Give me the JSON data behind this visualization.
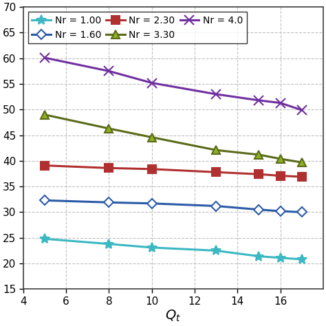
{
  "series": [
    {
      "label": "Nr = 1.00",
      "color": "#3BB8C3",
      "marker": "*",
      "markersize": 10,
      "markerfacecolor": "#3BB8C3",
      "markeredgecolor": "#3BB8C3",
      "x": [
        5,
        8,
        10,
        13,
        15,
        16,
        17
      ],
      "y": [
        24.8,
        23.8,
        23.1,
        22.5,
        21.4,
        21.1,
        20.8
      ]
    },
    {
      "label": "Nr = 1.60",
      "color": "#2B5BA8",
      "marker": "D",
      "markersize": 7,
      "markerfacecolor": "white",
      "markeredgecolor": "#2B5BA8",
      "x": [
        5,
        8,
        10,
        13,
        15,
        16,
        17
      ],
      "y": [
        32.3,
        31.9,
        31.7,
        31.2,
        30.5,
        30.2,
        30.0
      ]
    },
    {
      "label": "Nr = 2.30",
      "color": "#B03030",
      "marker": "s",
      "markersize": 8,
      "markerfacecolor": "#B03030",
      "markeredgecolor": "#B03030",
      "x": [
        5,
        8,
        10,
        13,
        15,
        16,
        17
      ],
      "y": [
        39.1,
        38.6,
        38.4,
        37.8,
        37.4,
        37.1,
        36.9
      ]
    },
    {
      "label": "Nr = 3.30",
      "color": "#5A6B1A",
      "marker": "^",
      "markersize": 9,
      "markerfacecolor": "#8DB020",
      "markeredgecolor": "#5A6B1A",
      "x": [
        5,
        8,
        10,
        13,
        15,
        16,
        17
      ],
      "y": [
        49.0,
        46.3,
        44.6,
        42.1,
        41.2,
        40.4,
        39.7
      ]
    },
    {
      "label": "Nr = 4.0",
      "color": "#7030A0",
      "marker": "x",
      "markersize": 10,
      "markerfacecolor": "#7030A0",
      "markeredgecolor": "#7030A0",
      "x": [
        5,
        8,
        10,
        13,
        15,
        16,
        17
      ],
      "y": [
        60.1,
        57.5,
        55.2,
        53.0,
        51.8,
        51.3,
        49.9
      ]
    }
  ],
  "xlim": [
    4,
    18
  ],
  "ylim": [
    15,
    70
  ],
  "xticks": [
    4,
    6,
    8,
    10,
    12,
    14,
    16
  ],
  "yticks": [
    15,
    20,
    25,
    30,
    35,
    40,
    45,
    50,
    55,
    60,
    65,
    70
  ],
  "grid_color": "#C0C0C0",
  "background_color": "#FFFFFF",
  "linewidth": 2.2,
  "xlabel_text": "$Q_t$",
  "xlabel_fontsize": 14,
  "tick_fontsize": 11,
  "legend_fontsize": 10,
  "legend_ncol": 3
}
